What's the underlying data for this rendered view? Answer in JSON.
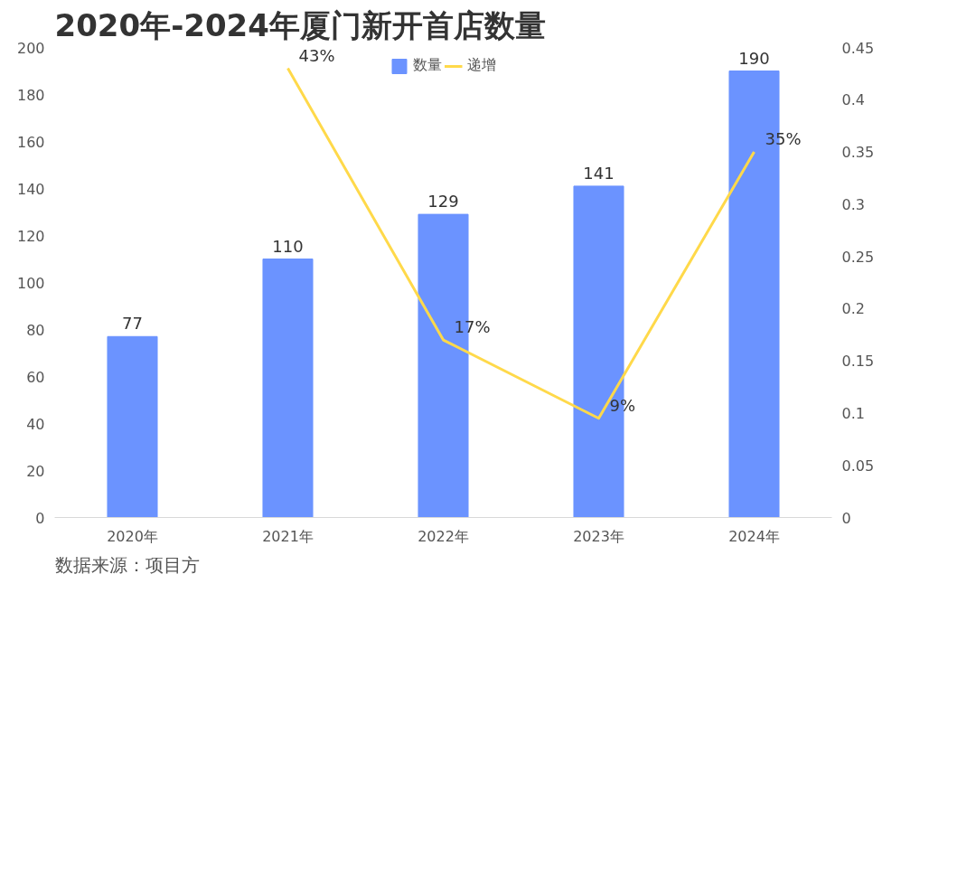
{
  "chart_data": {
    "type": "bar",
    "title": "2020年-2024年厦门新开首店数量",
    "categories": [
      "2020年",
      "2021年",
      "2022年",
      "2023年",
      "2024年"
    ],
    "series": [
      {
        "name": "数量",
        "color": "#6b93ff",
        "values": [
          77,
          110,
          129,
          141,
          190
        ],
        "value_labels": [
          "77",
          "110",
          "129",
          "141",
          "190"
        ]
      },
      {
        "name": "递增",
        "type": "line",
        "axis": "y2",
        "color": "#ffd94a",
        "values": [
          null,
          0.43,
          0.17,
          0.095,
          0.35
        ],
        "value_labels": [
          null,
          "43%",
          "17%",
          "9%",
          "35%"
        ]
      }
    ],
    "ylim": [
      0,
      200
    ],
    "yticks": [
      0,
      20,
      40,
      60,
      80,
      100,
      120,
      140,
      160,
      180,
      200
    ],
    "y2lim": [
      0,
      0.45
    ],
    "y2ticks": [
      0,
      0.05,
      0.1,
      0.15,
      0.2,
      0.25,
      0.3,
      0.35,
      0.4,
      0.45
    ],
    "legend": "top",
    "grid": false,
    "marker": "none",
    "line_style": "solid",
    "annotations": [
      "数据来源：项目方"
    ]
  }
}
